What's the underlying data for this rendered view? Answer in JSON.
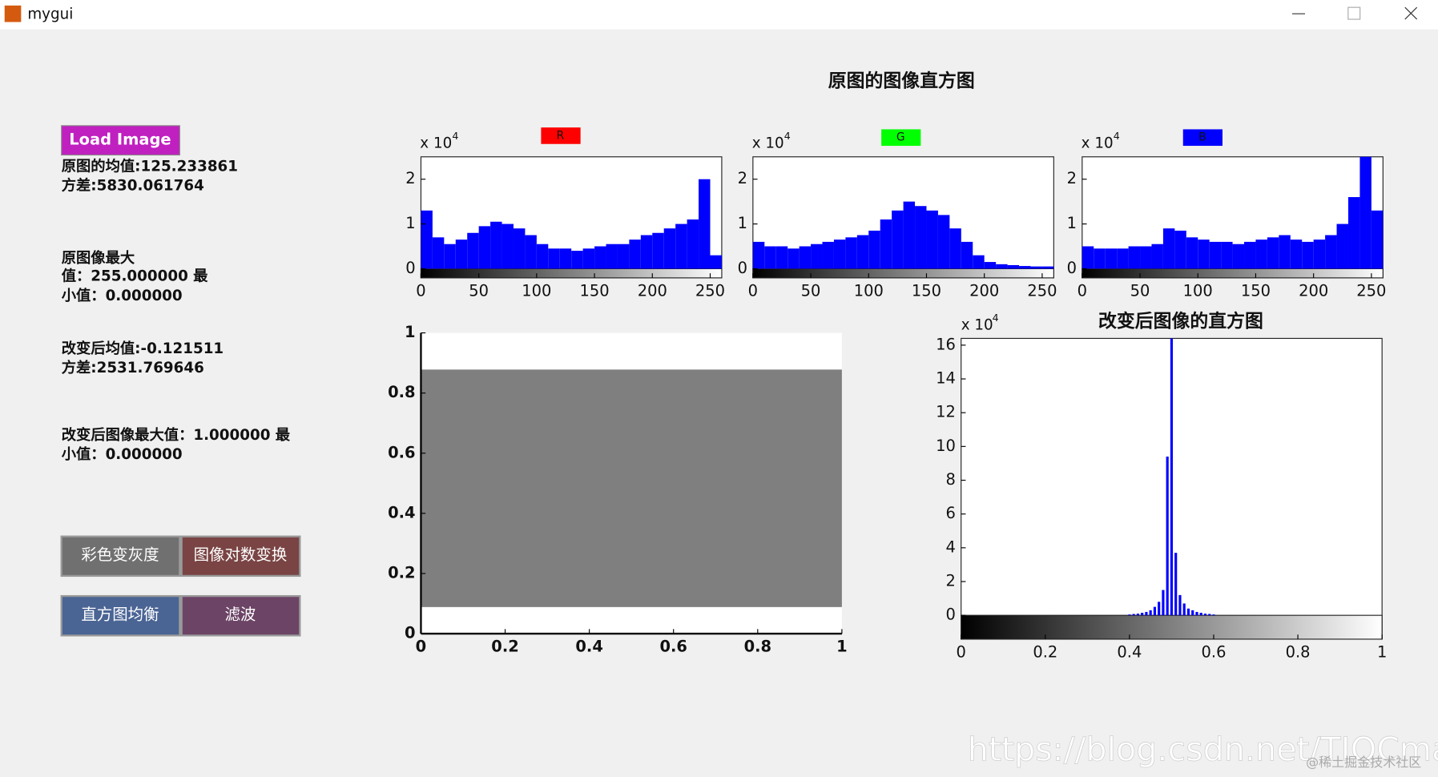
{
  "window": {
    "title": "mygui"
  },
  "panel_title": "原图的图像直方图",
  "controls": {
    "load_button": {
      "label": "Load Image",
      "color": "#c020c0"
    },
    "stats": [
      "原图的均值:125.233861",
      "方差:5830.061764",
      "原图像最大",
      "值：255.000000 最",
      "小值：0.000000",
      "改变后均值:-0.121511",
      "方差:2531.769646",
      "改变后图像最大值：1.000000 最",
      "小值：0.000000"
    ],
    "buttons": [
      {
        "label": "彩色变灰度",
        "color": "#707070"
      },
      {
        "label": "图像对数变换",
        "color": "#7a4444"
      },
      {
        "label": "直方图均衡",
        "color": "#4a6494"
      },
      {
        "label": "滤波",
        "color": "#6c4466"
      }
    ]
  },
  "chart_data": [
    {
      "type": "histogram",
      "label": "R",
      "label_color": "#ff0000",
      "exponent_base": "x 10",
      "exponent": "4",
      "color": "#0000ff",
      "x": [
        5,
        15,
        25,
        35,
        45,
        55,
        65,
        75,
        85,
        95,
        105,
        115,
        125,
        135,
        145,
        155,
        165,
        175,
        185,
        195,
        205,
        215,
        225,
        235,
        245,
        255
      ],
      "values": [
        1.3,
        0.7,
        0.55,
        0.65,
        0.8,
        0.95,
        1.05,
        1.0,
        0.9,
        0.75,
        0.55,
        0.45,
        0.45,
        0.4,
        0.45,
        0.5,
        0.55,
        0.55,
        0.65,
        0.75,
        0.8,
        0.9,
        1.0,
        1.1,
        2.0,
        0.3
      ],
      "xlim": [
        0,
        260
      ],
      "ylim": [
        0,
        2.5
      ],
      "xticks": [
        0,
        50,
        100,
        150,
        200,
        250
      ],
      "yticks": [
        0,
        1,
        2
      ]
    },
    {
      "type": "histogram",
      "label": "G",
      "label_color": "#00ff00",
      "exponent_base": "x 10",
      "exponent": "4",
      "color": "#0000ff",
      "x": [
        5,
        15,
        25,
        35,
        45,
        55,
        65,
        75,
        85,
        95,
        105,
        115,
        125,
        135,
        145,
        155,
        165,
        175,
        185,
        195,
        205,
        215,
        225,
        235,
        245,
        255
      ],
      "values": [
        0.6,
        0.5,
        0.5,
        0.45,
        0.5,
        0.55,
        0.6,
        0.65,
        0.7,
        0.75,
        0.85,
        1.1,
        1.3,
        1.5,
        1.4,
        1.3,
        1.2,
        0.9,
        0.6,
        0.3,
        0.15,
        0.1,
        0.08,
        0.06,
        0.05,
        0.05
      ],
      "xlim": [
        0,
        260
      ],
      "ylim": [
        0,
        2.5
      ],
      "xticks": [
        0,
        50,
        100,
        150,
        200,
        250
      ],
      "yticks": [
        0,
        1,
        2
      ]
    },
    {
      "type": "histogram",
      "label": "B",
      "label_color": "#0000ff",
      "exponent_base": "x 10",
      "exponent": "4",
      "color": "#0000ff",
      "x": [
        5,
        15,
        25,
        35,
        45,
        55,
        65,
        75,
        85,
        95,
        105,
        115,
        125,
        135,
        145,
        155,
        165,
        175,
        185,
        195,
        205,
        215,
        225,
        235,
        245,
        255
      ],
      "values": [
        0.5,
        0.45,
        0.45,
        0.45,
        0.5,
        0.5,
        0.55,
        0.9,
        0.85,
        0.7,
        0.65,
        0.6,
        0.6,
        0.55,
        0.6,
        0.65,
        0.7,
        0.75,
        0.65,
        0.6,
        0.65,
        0.75,
        1.0,
        1.6,
        2.5,
        1.3
      ],
      "xlim": [
        0,
        260
      ],
      "ylim": [
        0,
        2.5
      ],
      "xticks": [
        0,
        50,
        100,
        150,
        200,
        250
      ],
      "yticks": [
        0,
        1,
        2
      ]
    },
    {
      "type": "image",
      "xlim": [
        0,
        1
      ],
      "ylim": [
        0,
        1
      ],
      "xticks": [
        0,
        0.2,
        0.4,
        0.6,
        0.8,
        1
      ],
      "yticks": [
        0,
        0.2,
        0.4,
        0.6,
        0.8,
        1
      ]
    },
    {
      "type": "histogram",
      "title": "改变后图像的直方图",
      "exponent_base": "x 10",
      "exponent": "4",
      "color": "#0000ff",
      "x": [
        0.4,
        0.41,
        0.42,
        0.43,
        0.44,
        0.45,
        0.46,
        0.47,
        0.48,
        0.49,
        0.5,
        0.51,
        0.52,
        0.53,
        0.54,
        0.55,
        0.56,
        0.57,
        0.58,
        0.59,
        0.6
      ],
      "values": [
        0.05,
        0.08,
        0.1,
        0.15,
        0.2,
        0.3,
        0.5,
        0.8,
        1.5,
        9.4,
        16.4,
        3.7,
        1.2,
        0.7,
        0.4,
        0.3,
        0.2,
        0.15,
        0.1,
        0.08,
        0.05
      ],
      "xlim": [
        0,
        1
      ],
      "ylim": [
        0,
        16.4
      ],
      "xticks": [
        0,
        0.2,
        0.4,
        0.6,
        0.8,
        1
      ],
      "yticks": [
        0,
        2,
        4,
        6,
        8,
        10,
        12,
        14,
        16
      ]
    }
  ],
  "watermark": [
    "https://blog.csdn.net/TIQCmatlab",
    "@稀土掘金技术社区"
  ]
}
